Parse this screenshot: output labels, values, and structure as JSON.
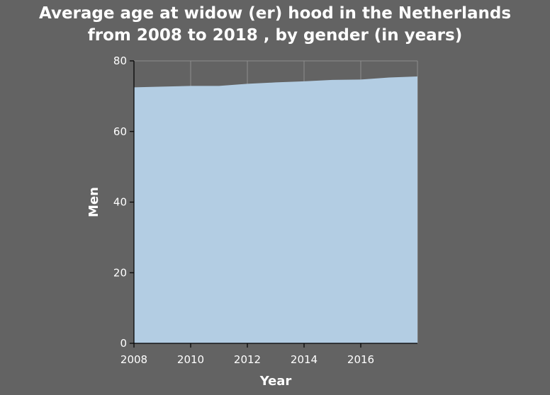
{
  "chart_data": {
    "type": "area",
    "title_line1": "Average age at widow (er) hood in the Netherlands",
    "title_line2": "from 2008 to 2018 , by gender (in years)",
    "xlabel": "Year",
    "ylabel": "Men",
    "x": [
      2008,
      2009,
      2010,
      2011,
      2012,
      2013,
      2014,
      2015,
      2016,
      2017,
      2018
    ],
    "series": [
      {
        "values": [
          72.5,
          72.7,
          72.9,
          72.9,
          73.5,
          73.9,
          74.2,
          74.6,
          74.7,
          75.3,
          75.6
        ]
      }
    ],
    "xlim": [
      2008,
      2018
    ],
    "ylim": [
      0,
      80
    ],
    "x_ticks": [
      2008,
      2010,
      2012,
      2014,
      2016
    ],
    "y_ticks": [
      0,
      20,
      40,
      60,
      80
    ],
    "grid": true,
    "colors": {
      "background": "#636363",
      "area_fill": "#b3cde3",
      "grid": "#8c8c8c",
      "text": "#ffffff"
    }
  }
}
